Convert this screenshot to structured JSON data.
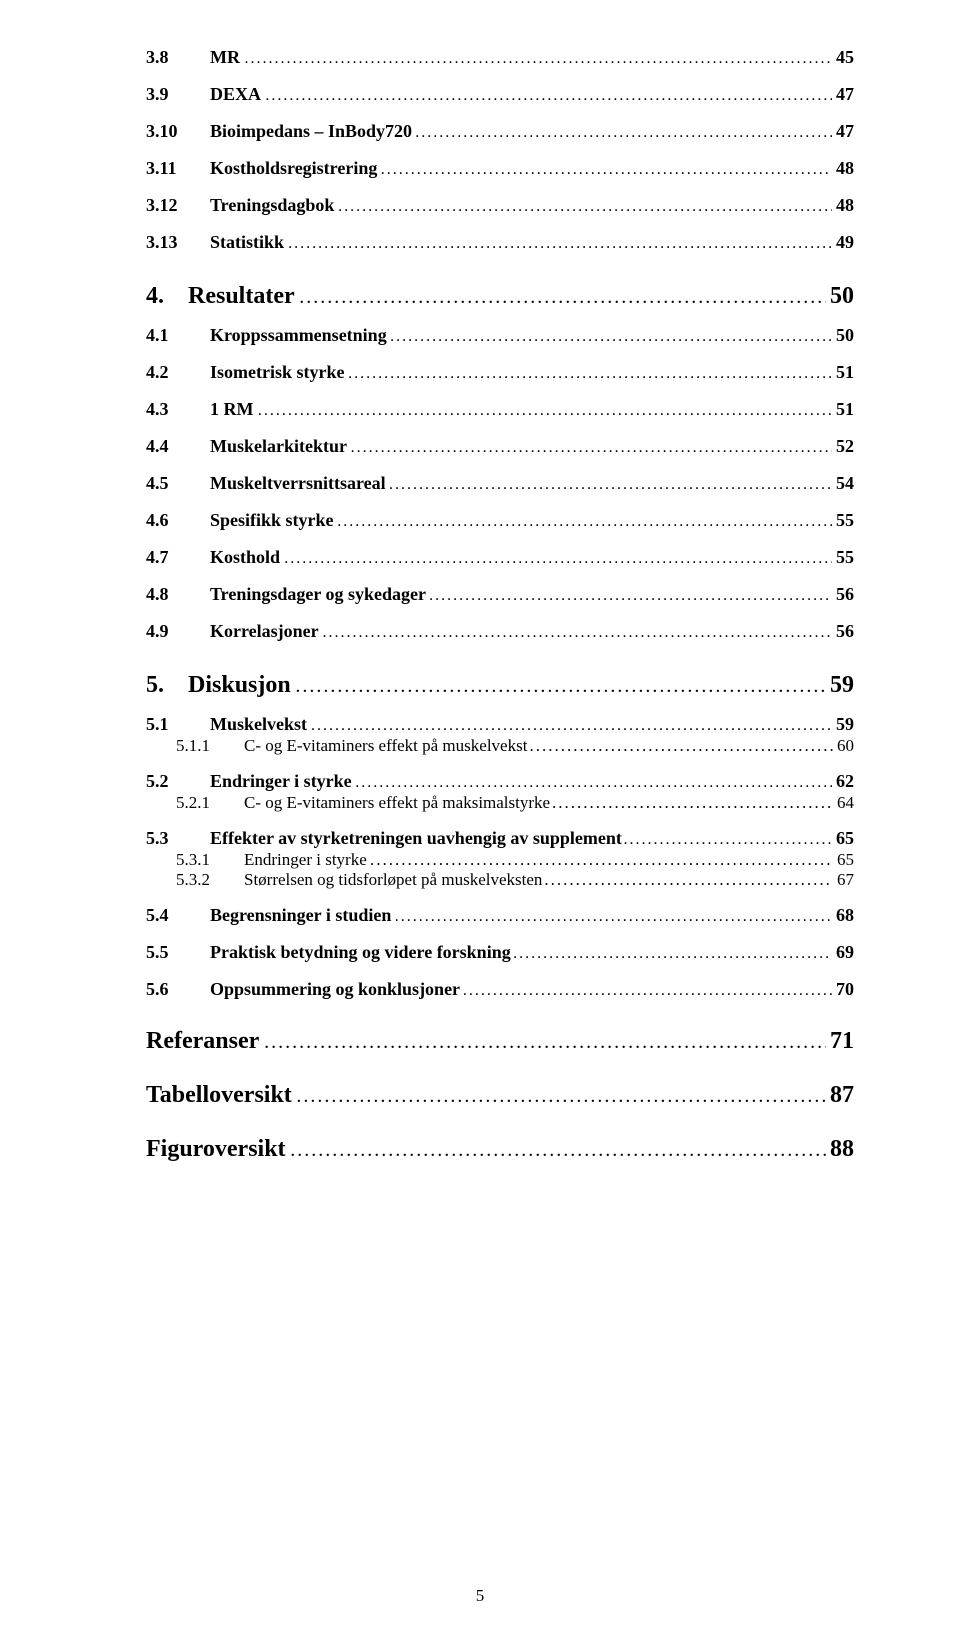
{
  "page_number": "5",
  "entries": [
    {
      "level": 2,
      "num": "3.8",
      "title": "MR",
      "page": "45",
      "first": true
    },
    {
      "level": 2,
      "num": "3.9",
      "title": "DEXA",
      "page": "47"
    },
    {
      "level": 2,
      "num": "3.10",
      "title": "Bioimpedans – InBody720",
      "page": "47"
    },
    {
      "level": 2,
      "num": "3.11",
      "title": "Kostholdsregistrering",
      "page": "48"
    },
    {
      "level": 2,
      "num": "3.12",
      "title": "Treningsdagbok",
      "page": "48"
    },
    {
      "level": 2,
      "num": "3.13",
      "title": "Statistikk",
      "page": "49"
    },
    {
      "level": 1,
      "num": "4.",
      "title": "Resultater",
      "page": "50"
    },
    {
      "level": 2,
      "num": "4.1",
      "title": "Kroppssammensetning",
      "page": "50"
    },
    {
      "level": 2,
      "num": "4.2",
      "title": "Isometrisk styrke",
      "page": "51"
    },
    {
      "level": 2,
      "num": "4.3",
      "title": "1 RM",
      "page": "51"
    },
    {
      "level": 2,
      "num": "4.4",
      "title": "Muskelarkitektur",
      "page": "52"
    },
    {
      "level": 2,
      "num": "4.5",
      "title": "Muskeltverrsnittsareal",
      "page": "54"
    },
    {
      "level": 2,
      "num": "4.6",
      "title": "Spesifikk styrke",
      "page": "55"
    },
    {
      "level": 2,
      "num": "4.7",
      "title": "Kosthold",
      "page": "55"
    },
    {
      "level": 2,
      "num": "4.8",
      "title": "Treningsdager og sykedager",
      "page": "56"
    },
    {
      "level": 2,
      "num": "4.9",
      "title": "Korrelasjoner",
      "page": "56"
    },
    {
      "level": 1,
      "num": "5.",
      "title": "Diskusjon",
      "page": "59"
    },
    {
      "level": 2,
      "num": "5.1",
      "title": "Muskelvekst",
      "page": "59"
    },
    {
      "level": 3,
      "num": "5.1.1",
      "title": "C- og E-vitaminers effekt på muskelvekst",
      "page": "60"
    },
    {
      "level": 2,
      "num": "5.2",
      "title": "Endringer i styrke",
      "page": "62"
    },
    {
      "level": 3,
      "num": "5.2.1",
      "title": "C- og E-vitaminers effekt på maksimalstyrke",
      "page": "64"
    },
    {
      "level": 2,
      "num": "5.3",
      "title": "Effekter av styrketreningen uavhengig av supplement",
      "page": "65"
    },
    {
      "level": 3,
      "num": "5.3.1",
      "title": "Endringer i styrke",
      "page": "65"
    },
    {
      "level": 3,
      "num": "5.3.2",
      "title": "Størrelsen og tidsforløpet på muskelveksten",
      "page": "67"
    },
    {
      "level": 2,
      "num": "5.4",
      "title": "Begrensninger i studien",
      "page": "68"
    },
    {
      "level": 2,
      "num": "5.5",
      "title": "Praktisk betydning og videre forskning",
      "page": "69"
    },
    {
      "level": 2,
      "num": "5.6",
      "title": "Oppsummering og konklusjoner",
      "page": "70"
    },
    {
      "level": 0,
      "title": "Referanser",
      "page": "71"
    },
    {
      "level": 0,
      "title": "Tabelloversikt",
      "page": "87"
    },
    {
      "level": 0,
      "title": "Figuroversikt",
      "page": "88"
    }
  ]
}
